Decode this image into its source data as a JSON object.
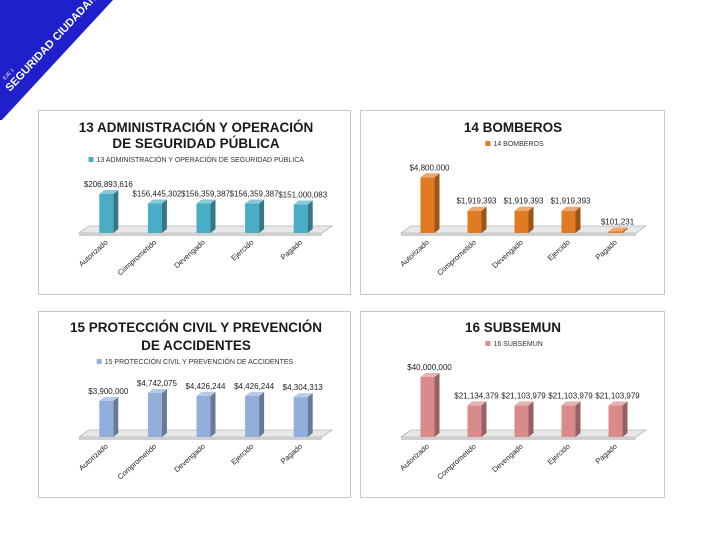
{
  "header": {
    "banner_sub": "EJE 1",
    "banner_text": "SEGURIDAD CIUDADANA",
    "banner_color": "#1f1fcc"
  },
  "chart_data": [
    {
      "type": "bar",
      "title_lines": [
        "13 ADMINISTRACIÓN Y OPERACIÓN",
        "DE SEGURIDAD PÚBLICA"
      ],
      "legend": "13 ADMINISTRACIÓN Y OPERACIÓN DE SEGURIDAD PÚBLICA",
      "categories": [
        "Autorizado",
        "Comprometido",
        "Devengado",
        "Ejercido",
        "Pagado"
      ],
      "values": [
        206893616,
        156445302,
        156359387,
        156359387,
        151000083
      ],
      "labels": [
        "$206,893,616",
        "$156,445,302",
        "$156,359,387",
        "$156,359,387",
        "$151,000,083"
      ],
      "ylim": [
        0,
        260000000
      ],
      "color": "#4bacc6"
    },
    {
      "type": "bar",
      "title_lines": [
        "14 BOMBEROS"
      ],
      "legend": "14 BOMBEROS",
      "categories": [
        "Autorizado",
        "Comprometido",
        "Devengado",
        "Ejercido",
        "Pagado"
      ],
      "values": [
        4800000,
        1919393,
        1919393,
        1919393,
        101231
      ],
      "labels": [
        "$4,800,000",
        "$1,919,393",
        "$1,919,393",
        "$1,919,393",
        "$101,231"
      ],
      "ylim": [
        0,
        5600000
      ],
      "color": "#e07b23"
    },
    {
      "type": "bar",
      "title_lines": [
        "15 PROTECCIÓN CIVIL Y PREVENCIÓN",
        "DE ACCIDENTES"
      ],
      "legend": "15 PROTECCIÓN CIVIL Y PREVENCIÓN DE ACCIDENTES",
      "categories": [
        "Autorizado",
        "Comprometido",
        "Devengado",
        "Ejercido",
        "Pagado"
      ],
      "values": [
        3900000,
        4742075,
        4426244,
        4426244,
        4304313
      ],
      "labels": [
        "$3,900,000",
        "$4,742,075",
        "$4,426,244",
        "$4,426,244",
        "$4,304,313"
      ],
      "ylim": [
        0,
        5500000
      ],
      "color": "#94aedb"
    },
    {
      "type": "bar",
      "title_lines": [
        "16 SUBSEMUN"
      ],
      "legend": "16 SUBSEMUN",
      "categories": [
        "Autorizado",
        "Comprometido",
        "Devengado",
        "Ejercido",
        "Pagado"
      ],
      "values": [
        40000000,
        21134379,
        21103979,
        21103979,
        21103979
      ],
      "labels": [
        "$40,000,000",
        "$21,134,379",
        "$21,103,979",
        "$21,103,979",
        "$21,103,979"
      ],
      "ylim": [
        0,
        46000000
      ],
      "color": "#d98a8a"
    }
  ]
}
